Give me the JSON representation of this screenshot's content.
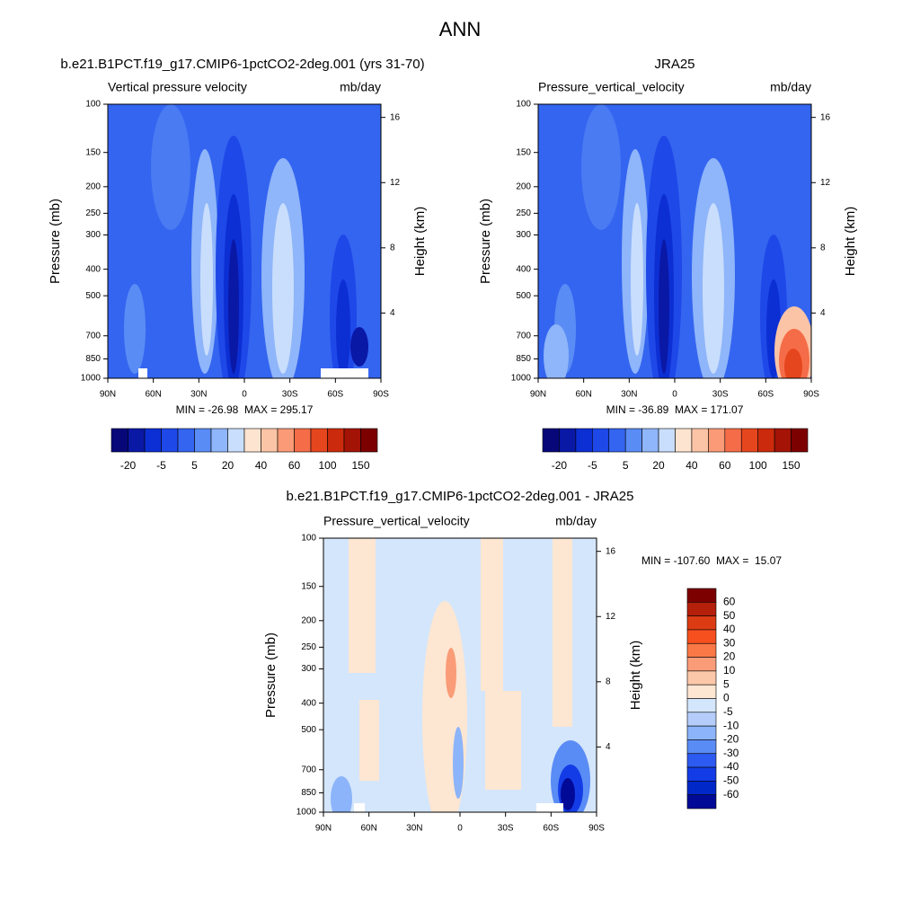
{
  "title": "ANN",
  "panels": [
    {
      "title": "b.e21.B1PCT.f19_g17.CMIP6-1pctCO2-2deg.001 (yrs 31-70)",
      "variable": "Vertical pressure velocity",
      "units": "mb/day",
      "y_label": "Pressure (mb)",
      "y2_label": "Height (km)",
      "ylim": [
        100,
        1000
      ],
      "yscale": "log",
      "yticks": [
        100,
        150,
        200,
        250,
        300,
        400,
        500,
        700,
        850,
        1000
      ],
      "y2ticks": [
        4,
        8,
        12,
        16
      ],
      "xticks": [
        "90N",
        "60N",
        "30N",
        "0",
        "30S",
        "60S",
        "90S"
      ],
      "stats": "MIN = -26.98  MAX = 295.17",
      "colorbar": {
        "orientation": "horizontal",
        "colors": [
          "#07077a",
          "#0a18a6",
          "#0c2fd4",
          "#1f48e8",
          "#3465f0",
          "#5a8cf5",
          "#8fb5fa",
          "#c9defc",
          "#fde4d0",
          "#fcc4a6",
          "#fa9a76",
          "#f56c48",
          "#e6461e",
          "#cc2a0c",
          "#a41406",
          "#7d0000"
        ],
        "labels": [
          -20,
          -5,
          5,
          20,
          40,
          60,
          100,
          150
        ]
      }
    },
    {
      "title": "JRA25",
      "variable": "Pressure_vertical_velocity",
      "units": "mb/day",
      "y_label": "Pressure (mb)",
      "y2_label": "Height (km)",
      "ylim": [
        100,
        1000
      ],
      "yscale": "log",
      "yticks": [
        100,
        150,
        200,
        250,
        300,
        400,
        500,
        700,
        850,
        1000
      ],
      "y2ticks": [
        4,
        8,
        12,
        16
      ],
      "xticks": [
        "90N",
        "60N",
        "30N",
        "0",
        "30S",
        "60S",
        "90S"
      ],
      "stats": "MIN = -36.89  MAX = 171.07",
      "colorbar": {
        "orientation": "horizontal",
        "colors": [
          "#07077a",
          "#0a18a6",
          "#0c2fd4",
          "#1f48e8",
          "#3465f0",
          "#5a8cf5",
          "#8fb5fa",
          "#c9defc",
          "#fde4d0",
          "#fcc4a6",
          "#fa9a76",
          "#f56c48",
          "#e6461e",
          "#cc2a0c",
          "#a41406",
          "#7d0000"
        ],
        "labels": [
          -20,
          -5,
          5,
          20,
          40,
          60,
          100,
          150
        ]
      }
    },
    {
      "title": "b.e21.B1PCT.f19_g17.CMIP6-1pctCO2-2deg.001 - JRA25",
      "variable": "Pressure_vertical_velocity",
      "units": "mb/day",
      "y_label": "Pressure (mb)",
      "y2_label": "Height (km)",
      "ylim": [
        100,
        1000
      ],
      "yscale": "log",
      "yticks": [
        100,
        150,
        200,
        250,
        300,
        400,
        500,
        700,
        850,
        1000
      ],
      "y2ticks": [
        4,
        8,
        12,
        16
      ],
      "xticks": [
        "90N",
        "60N",
        "30N",
        "0",
        "30S",
        "60S",
        "90S"
      ],
      "stats": "MIN = -107.60  MAX =  15.07",
      "colorbar": {
        "orientation": "vertical",
        "colors": [
          "#7d0000",
          "#b4200a",
          "#dc3c14",
          "#f5501e",
          "#fa7846",
          "#fa9c78",
          "#fcc8aa",
          "#fde6d2",
          "#d4e6fb",
          "#b4cdfa",
          "#8cb4fa",
          "#5a8cf5",
          "#2d5af0",
          "#143ce6",
          "#0028c8",
          "#000a96"
        ],
        "labels": [
          60,
          50,
          40,
          30,
          20,
          10,
          5,
          0,
          -5,
          -10,
          -20,
          -30,
          -40,
          -50,
          -60
        ]
      }
    }
  ]
}
